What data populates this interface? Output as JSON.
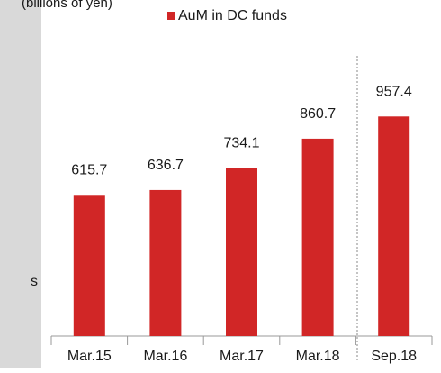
{
  "chart_data": {
    "type": "bar",
    "title": "(billions of yen)",
    "annotations": [
      "s"
    ],
    "categories": [
      "Mar.15",
      "Mar.16",
      "Mar.17",
      "Mar.18",
      "Sep.18"
    ],
    "series": [
      {
        "name": "AuM in DC funds",
        "color": "#d12626",
        "values": [
          615.7,
          636.7,
          734.1,
          860.7,
          957.4
        ]
      }
    ],
    "ylim": [
      0,
      1100
    ]
  }
}
